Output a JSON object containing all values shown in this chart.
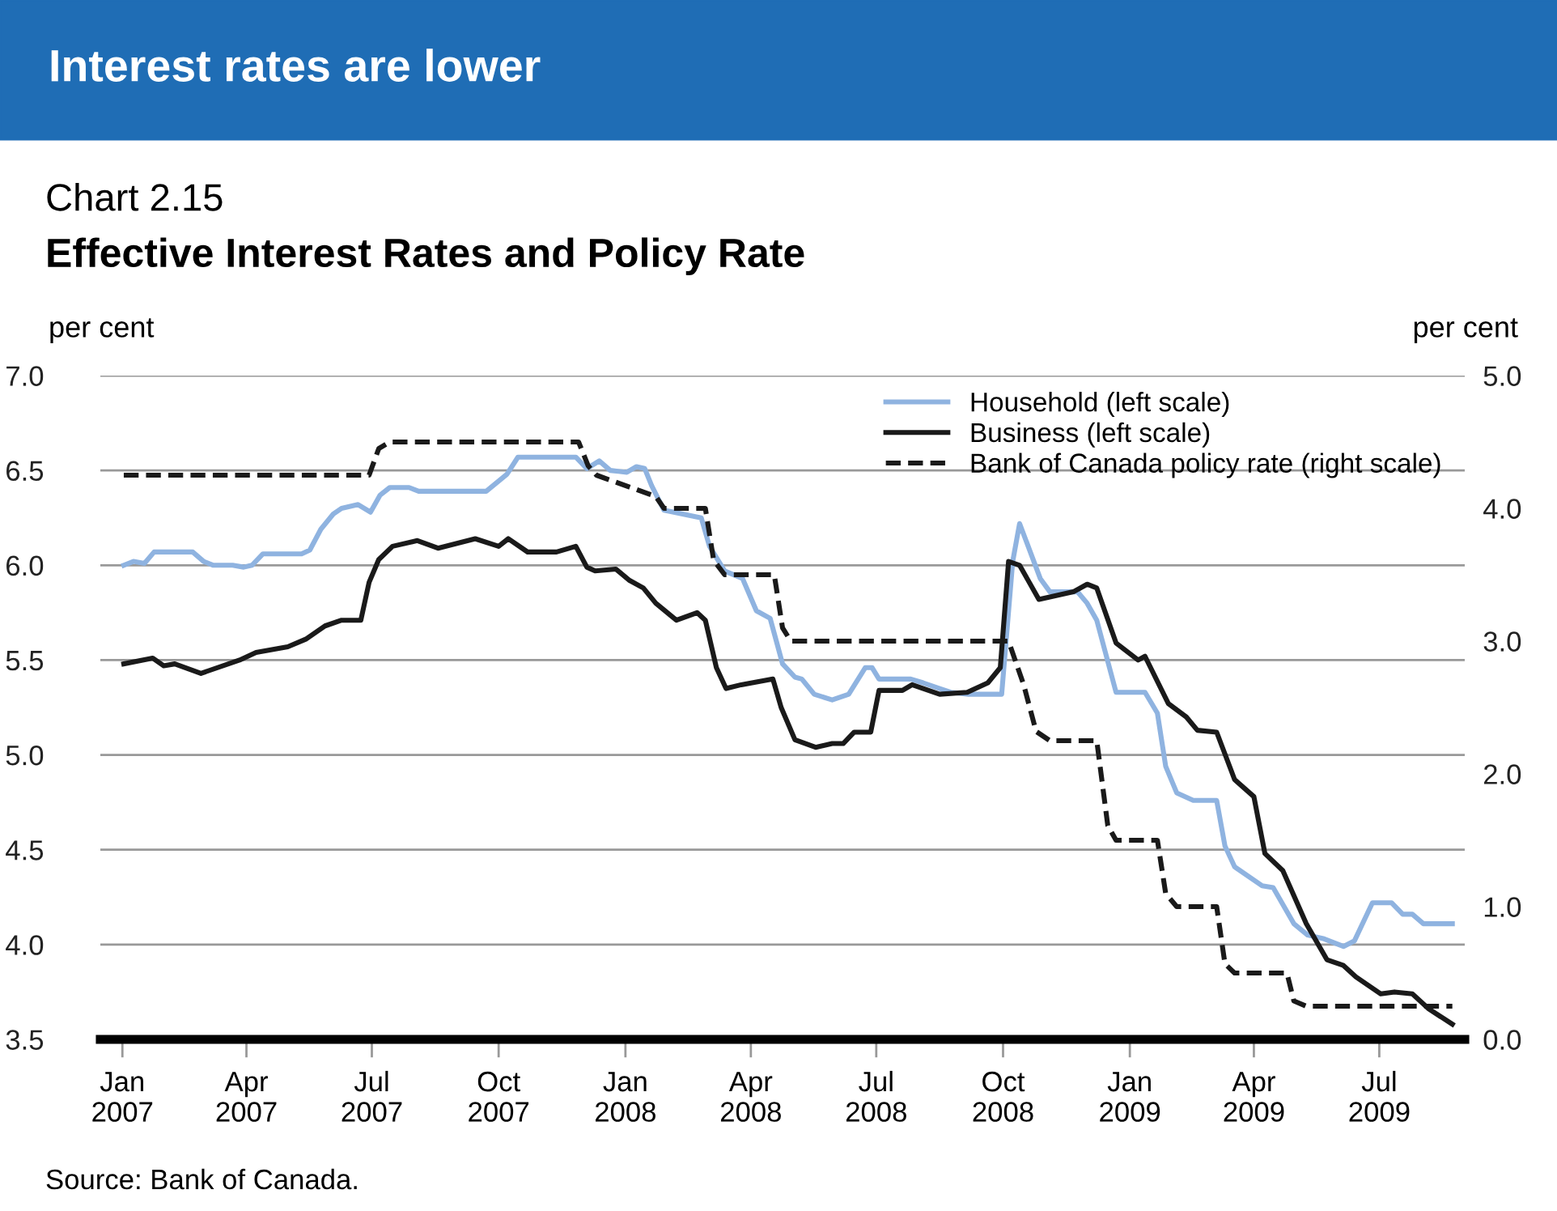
{
  "chart_data": {
    "type": "line",
    "title": "Effective Interest Rates and Policy Rate",
    "subtitle": "Chart 2.15",
    "ylabel": "per cent",
    "y2label": "per cent",
    "annotations": [
      "Interest rates are lower",
      "Source: Bank of Canada."
    ],
    "xlim": [
      "2006-12-16",
      "2009-09-01"
    ],
    "xticks": [
      {
        "value": "2007-01-01",
        "label": "Jan\n2007"
      },
      {
        "value": "2007-04-01",
        "label": "Apr\n2007"
      },
      {
        "value": "2007-07-01",
        "label": "Jul\n2007"
      },
      {
        "value": "2007-10-01",
        "label": "Oct\n2007"
      },
      {
        "value": "2008-01-01",
        "label": "Jan\n2008"
      },
      {
        "value": "2008-04-01",
        "label": "Apr\n2008"
      },
      {
        "value": "2008-07-01",
        "label": "Jul\n2008"
      },
      {
        "value": "2008-10-01",
        "label": "Oct\n2008"
      },
      {
        "value": "2009-01-01",
        "label": "Jan\n2009"
      },
      {
        "value": "2009-04-01",
        "label": "Apr\n2009"
      },
      {
        "value": "2009-07-01",
        "label": "Jul\n2009"
      }
    ],
    "ylim": [
      3.5,
      7.0
    ],
    "yticks": [
      {
        "value": 3.5,
        "label": "3.5"
      },
      {
        "value": 4,
        "label": "4.0"
      },
      {
        "value": 4.5,
        "label": "4.5"
      },
      {
        "value": 5,
        "label": "5.0"
      },
      {
        "value": 5.5,
        "label": "5.5"
      },
      {
        "value": 6,
        "label": "6.0"
      },
      {
        "value": 6.5,
        "label": "6.5"
      },
      {
        "value": 7,
        "label": "7.0"
      }
    ],
    "y2lim": [
      0,
      5
    ],
    "y2ticks": [
      {
        "value": 0,
        "label": "0.0"
      },
      {
        "value": 1,
        "label": "1.0"
      },
      {
        "value": 2,
        "label": "2.0"
      },
      {
        "value": 3,
        "label": "3.0"
      },
      {
        "value": 4,
        "label": "4.0"
      },
      {
        "value": 5,
        "label": "5.0"
      }
    ],
    "grid": "y",
    "legend": "top right",
    "series": [
      {
        "name": "Household (left scale)",
        "color": "#8fb3e0",
        "line_style": "solid",
        "x": [
          "2007-01-02",
          "2007-01-09",
          "2007-01-17",
          "2007-01-24",
          "2007-02-21",
          "2007-03-01",
          "2007-03-08",
          "2007-03-22",
          "2007-03-30",
          "2007-04-05",
          "2007-04-13",
          "2007-05-11",
          "2007-05-17",
          "2007-05-25",
          "2007-06-03",
          "2007-06-09",
          "2007-06-21",
          "2007-06-30",
          "2007-07-07",
          "2007-07-14",
          "2007-07-28",
          "2007-08-04",
          "2007-09-22",
          "2007-10-07",
          "2007-10-15",
          "2007-11-26",
          "2007-12-04",
          "2007-12-13",
          "2007-12-21",
          "2008-01-02",
          "2008-01-09",
          "2008-01-15",
          "2008-01-20",
          "2008-01-29",
          "2008-02-25",
          "2008-03-02",
          "2008-03-13",
          "2008-03-26",
          "2008-04-05",
          "2008-04-15",
          "2008-04-24",
          "2008-05-03",
          "2008-05-08",
          "2008-05-17",
          "2008-05-30",
          "2008-06-11",
          "2008-06-23",
          "2008-06-28",
          "2008-07-03",
          "2008-07-26",
          "2008-08-04",
          "2008-08-16",
          "2008-08-24",
          "2008-09-06",
          "2008-09-30",
          "2008-10-08",
          "2008-10-13",
          "2008-10-28",
          "2008-11-04",
          "2008-11-24",
          "2008-12-01",
          "2008-12-08",
          "2008-12-22",
          "2009-01-12",
          "2009-01-21",
          "2009-01-27",
          "2009-02-04",
          "2009-02-16",
          "2009-03-05",
          "2009-03-11",
          "2009-03-18",
          "2009-04-07",
          "2009-04-15",
          "2009-04-30",
          "2009-05-10",
          "2009-05-22",
          "2009-06-05",
          "2009-06-13",
          "2009-06-26",
          "2009-07-10",
          "2009-07-18",
          "2009-07-25",
          "2009-08-02",
          "2009-08-23"
        ],
        "values": [
          6.0,
          6.02,
          6.01,
          6.07,
          6.07,
          6.02,
          6.0,
          6.0,
          5.99,
          6.0,
          6.06,
          6.06,
          6.08,
          6.19,
          6.27,
          6.3,
          6.32,
          6.28,
          6.37,
          6.41,
          6.41,
          6.39,
          6.39,
          6.48,
          6.57,
          6.57,
          6.51,
          6.55,
          6.5,
          6.49,
          6.52,
          6.51,
          6.42,
          6.29,
          6.25,
          6.1,
          5.97,
          5.93,
          5.76,
          5.72,
          5.48,
          5.41,
          5.4,
          5.32,
          5.29,
          5.32,
          5.46,
          5.46,
          5.4,
          5.4,
          5.38,
          5.35,
          5.33,
          5.32,
          5.32,
          6.02,
          6.22,
          5.93,
          5.86,
          5.86,
          5.8,
          5.71,
          5.33,
          5.33,
          5.22,
          4.94,
          4.8,
          4.76,
          4.76,
          4.52,
          4.41,
          4.31,
          4.3,
          4.11,
          4.05,
          4.03,
          3.99,
          4.02,
          4.22,
          4.22,
          4.16,
          4.16,
          4.11,
          4.11
        ]
      },
      {
        "name": "Business (left scale)",
        "color": "#1a1a1a",
        "line_style": "solid",
        "x": [
          "2007-01-02",
          "2007-01-23",
          "2007-01-31",
          "2007-02-08",
          "2007-02-27",
          "2007-03-27",
          "2007-04-08",
          "2007-05-01",
          "2007-05-14",
          "2007-05-28",
          "2007-06-09",
          "2007-06-23",
          "2007-06-29",
          "2007-07-06",
          "2007-07-16",
          "2007-08-03",
          "2007-08-18",
          "2007-09-14",
          "2007-10-01",
          "2007-10-08",
          "2007-10-22",
          "2007-11-12",
          "2007-11-26",
          "2007-12-04",
          "2007-12-10",
          "2007-12-25",
          "2008-01-04",
          "2008-01-14",
          "2008-01-23",
          "2008-02-07",
          "2008-02-22",
          "2008-02-28",
          "2008-03-07",
          "2008-03-14",
          "2008-03-25",
          "2008-04-17",
          "2008-04-23",
          "2008-05-03",
          "2008-05-18",
          "2008-05-30",
          "2008-06-07",
          "2008-06-15",
          "2008-06-27",
          "2008-07-03",
          "2008-07-20",
          "2008-07-27",
          "2008-08-16",
          "2008-09-05",
          "2008-09-20",
          "2008-09-29",
          "2008-10-05",
          "2008-10-13",
          "2008-10-27",
          "2008-11-21",
          "2008-12-01",
          "2008-12-08",
          "2008-12-22",
          "2009-01-07",
          "2009-01-12",
          "2009-01-29",
          "2009-02-11",
          "2009-02-19",
          "2009-03-05",
          "2009-03-18",
          "2009-04-01",
          "2009-04-09",
          "2009-04-22",
          "2009-05-09",
          "2009-05-24",
          "2009-06-05",
          "2009-06-14",
          "2009-07-02",
          "2009-07-12",
          "2009-07-25",
          "2009-08-06",
          "2009-08-23"
        ],
        "values": [
          5.48,
          5.51,
          5.47,
          5.48,
          5.43,
          5.5,
          5.54,
          5.57,
          5.61,
          5.68,
          5.71,
          5.71,
          5.91,
          6.03,
          6.1,
          6.13,
          6.09,
          6.14,
          6.1,
          6.14,
          6.07,
          6.07,
          6.1,
          5.99,
          5.97,
          5.98,
          5.92,
          5.88,
          5.8,
          5.71,
          5.75,
          5.71,
          5.46,
          5.35,
          5.37,
          5.4,
          5.25,
          5.08,
          5.04,
          5.06,
          5.06,
          5.12,
          5.12,
          5.34,
          5.34,
          5.37,
          5.32,
          5.33,
          5.38,
          5.46,
          6.02,
          6.0,
          5.82,
          5.86,
          5.9,
          5.88,
          5.59,
          5.5,
          5.52,
          5.27,
          5.2,
          5.13,
          5.12,
          4.87,
          4.78,
          4.48,
          4.39,
          4.11,
          3.92,
          3.89,
          3.83,
          3.74,
          3.75,
          3.74,
          3.66,
          3.58
        ]
      },
      {
        "name": "Bank of Canada policy rate (right scale)",
        "color": "#1a1a1a",
        "line_style": "dashed",
        "axis": "y2",
        "x": [
          "2007-01-02",
          "2007-06-29",
          "2007-07-06",
          "2007-07-14",
          "2007-11-28",
          "2007-12-05",
          "2007-12-11",
          "2008-01-23",
          "2008-01-29",
          "2008-02-28",
          "2008-03-05",
          "2008-03-13",
          "2008-04-18",
          "2008-04-24",
          "2008-04-30",
          "2008-10-05",
          "2008-10-16",
          "2008-10-25",
          "2008-11-04",
          "2008-12-08",
          "2008-12-16",
          "2008-12-22",
          "2009-01-21",
          "2009-01-27",
          "2009-02-04",
          "2009-03-05",
          "2009-03-11",
          "2009-03-18",
          "2009-04-25",
          "2009-04-30",
          "2009-05-09",
          "2009-08-23"
        ],
        "values": [
          4.25,
          4.25,
          4.45,
          4.5,
          4.5,
          4.32,
          4.25,
          4.09,
          4.0,
          4.0,
          3.61,
          3.5,
          3.5,
          3.1,
          3.0,
          3.0,
          2.67,
          2.32,
          2.25,
          2.25,
          1.61,
          1.5,
          1.5,
          1.1,
          1.0,
          1.0,
          0.57,
          0.5,
          0.5,
          0.29,
          0.25,
          0.25
        ]
      }
    ]
  }
}
